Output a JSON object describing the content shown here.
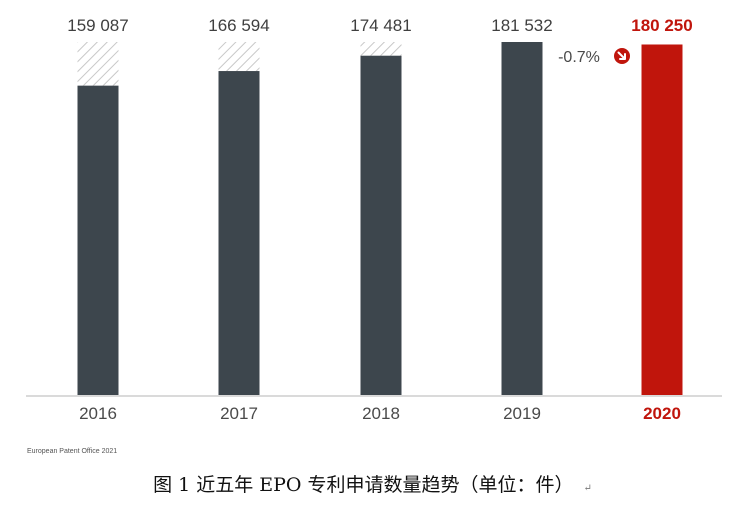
{
  "chart_data": {
    "type": "bar",
    "categories": [
      "2016",
      "2017",
      "2018",
      "2019",
      "2020"
    ],
    "values": [
      159087,
      166594,
      174481,
      181532,
      180250
    ],
    "value_labels": [
      "159 087",
      "166 594",
      "174 481",
      "181 532",
      "180 250"
    ],
    "highlight_index": 4,
    "reference_value": 181532,
    "change_label": "-0.7%",
    "change_direction": "down",
    "ylim": [
      0,
      181532
    ],
    "grid": false,
    "colors": {
      "bar": "#3d464d",
      "highlight": "#c0150c",
      "hatch": "#c8c8c8",
      "axis": "#b5b5b5"
    }
  },
  "source": "European Patent Office 2021",
  "caption": {
    "text": "图 1   近五年 EPO 专利申请数量趋势（单位：件）",
    "mark": "↵"
  }
}
